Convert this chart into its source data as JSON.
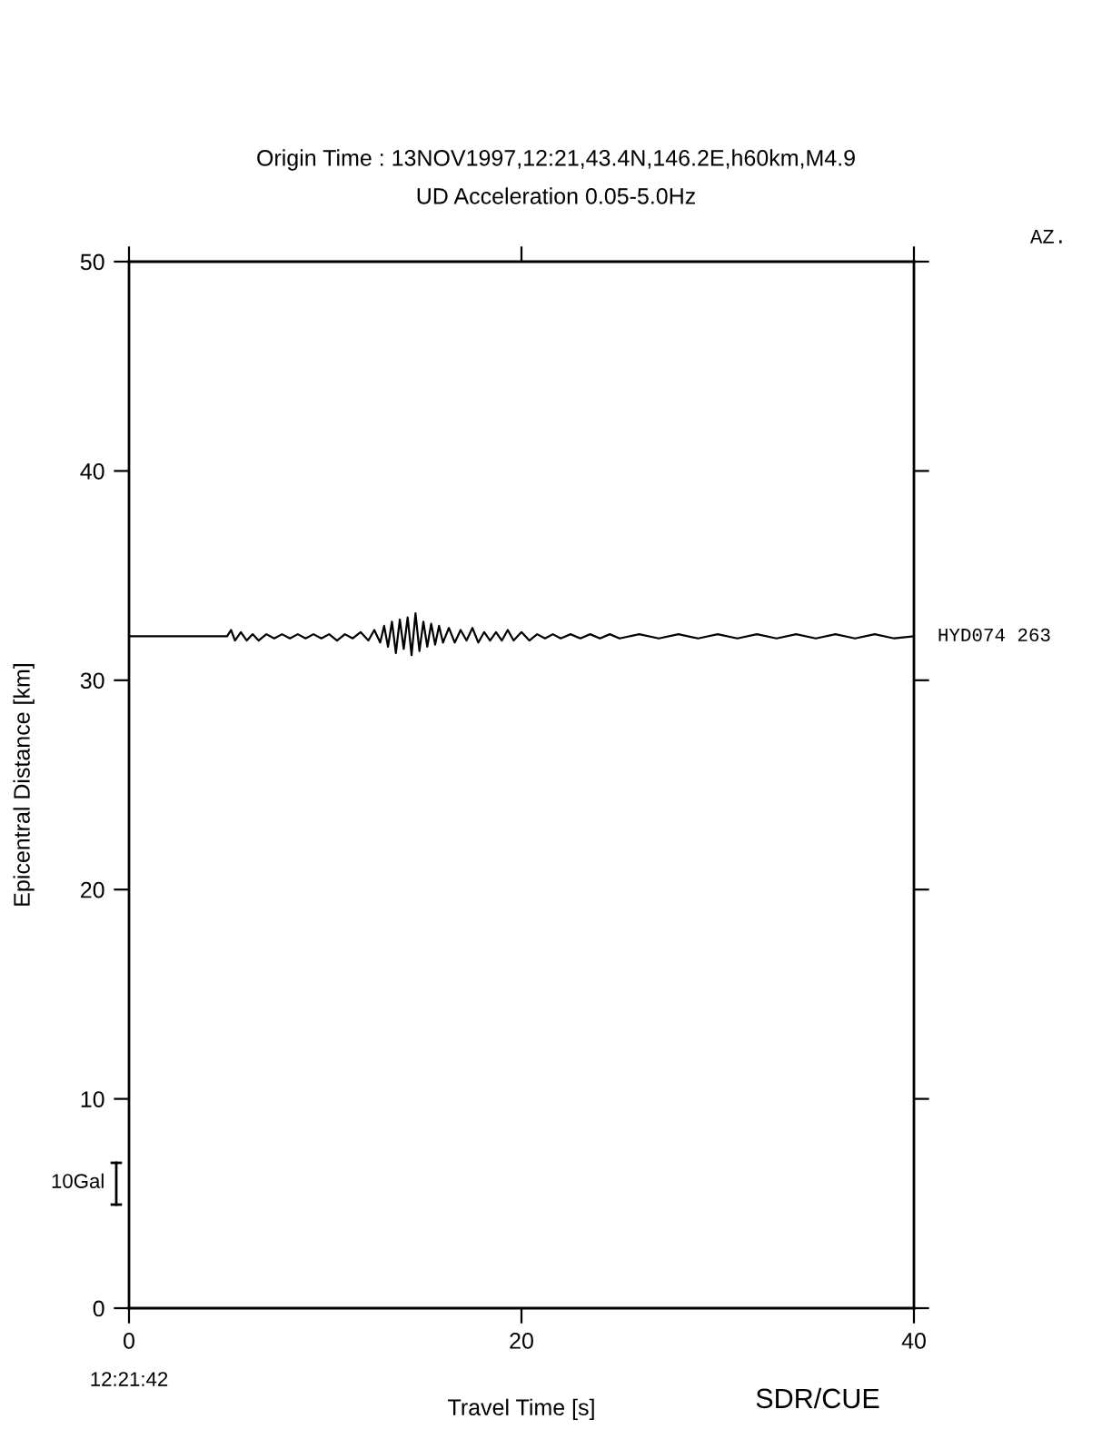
{
  "chart_data": {
    "type": "line",
    "title": "Origin Time : 13NOV1997,12:21,43.4N,146.2E,h60km,M4.9",
    "subtitle": "UD Acceleration 0.05-5.0Hz",
    "xlabel": "Travel Time [s]",
    "ylabel": "Epicentral Distance [km]",
    "xlim": [
      0,
      40
    ],
    "xticks": [
      0,
      20,
      40
    ],
    "ylim": [
      0,
      50
    ],
    "yticks": [
      0,
      10,
      20,
      30,
      40,
      50
    ],
    "grid": false,
    "series": [
      {
        "name": "HYD074 263",
        "color": "#000000",
        "x": [
          0,
          5.0,
          5.2,
          5.4,
          5.7,
          6.0,
          6.3,
          6.6,
          7.0,
          7.4,
          7.8,
          8.2,
          8.6,
          9.0,
          9.4,
          9.8,
          10.2,
          10.6,
          11.0,
          11.4,
          11.8,
          12.2,
          12.5,
          12.8,
          13.0,
          13.2,
          13.4,
          13.6,
          13.8,
          14.0,
          14.2,
          14.4,
          14.6,
          14.8,
          15.0,
          15.2,
          15.4,
          15.6,
          15.8,
          16.0,
          16.3,
          16.6,
          16.9,
          17.2,
          17.5,
          17.8,
          18.1,
          18.4,
          18.7,
          19.0,
          19.3,
          19.6,
          20.0,
          20.4,
          20.8,
          21.2,
          21.6,
          22.0,
          22.5,
          23.0,
          23.5,
          24.0,
          24.5,
          25,
          26,
          27,
          28,
          29,
          30,
          31,
          32,
          33,
          34,
          35,
          36,
          37,
          38,
          39,
          40
        ],
        "values": [
          32.1,
          32.1,
          32.4,
          31.9,
          32.3,
          31.9,
          32.2,
          31.9,
          32.2,
          32.0,
          32.2,
          32.0,
          32.2,
          32.0,
          32.2,
          32.0,
          32.2,
          31.9,
          32.2,
          32.0,
          32.3,
          31.9,
          32.4,
          31.8,
          32.6,
          31.6,
          32.8,
          31.3,
          32.9,
          31.5,
          33.0,
          31.2,
          33.2,
          31.4,
          32.8,
          31.6,
          32.7,
          31.7,
          32.6,
          31.8,
          32.5,
          31.8,
          32.4,
          31.9,
          32.5,
          31.8,
          32.3,
          31.9,
          32.3,
          31.9,
          32.4,
          31.9,
          32.3,
          31.9,
          32.2,
          32.0,
          32.2,
          32.0,
          32.2,
          32.0,
          32.2,
          32.0,
          32.2,
          32.0,
          32.2,
          32.0,
          32.2,
          32.0,
          32.2,
          32.0,
          32.2,
          32.0,
          32.2,
          32.0,
          32.2,
          32.0,
          32.2,
          32.0,
          32.1
        ]
      }
    ],
    "annotations": [
      "AZ.",
      "12:21:42",
      "10Gal",
      "SDR/CUE"
    ]
  }
}
